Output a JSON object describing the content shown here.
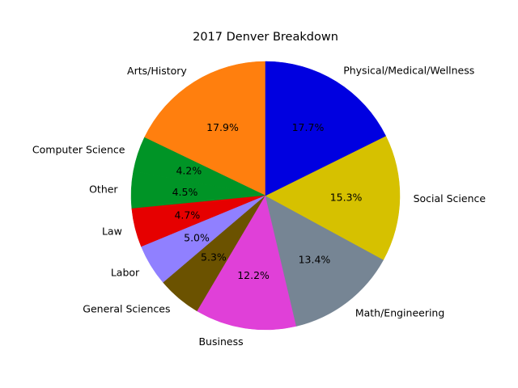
{
  "chart_data": {
    "type": "pie",
    "title": "2017 Denver Breakdown",
    "start_angle_deg": 90,
    "direction": "counterclockwise",
    "slices": [
      {
        "label": "Arts/History",
        "value": 17.9,
        "pct_text": "17.9%",
        "color": "#ff7f0e"
      },
      {
        "label": "Computer Science",
        "value": 4.2,
        "pct_text": "4.2%",
        "color": "#009426"
      },
      {
        "label": "Other",
        "value": 4.5,
        "pct_text": "4.5%",
        "color": "#009426"
      },
      {
        "label": "Law",
        "value": 4.7,
        "pct_text": "4.7%",
        "color": "#e60000"
      },
      {
        "label": "Labor",
        "value": 5.0,
        "pct_text": "5.0%",
        "color": "#9080ff"
      },
      {
        "label": "General Sciences",
        "value": 5.3,
        "pct_text": "5.3%",
        "color": "#6b5200"
      },
      {
        "label": "Business",
        "value": 12.2,
        "pct_text": "12.2%",
        "color": "#e040d8"
      },
      {
        "label": "Math/Engineering",
        "value": 13.4,
        "pct_text": "13.4%",
        "color": "#768594"
      },
      {
        "label": "Social Science",
        "value": 15.3,
        "pct_text": "15.3%",
        "color": "#d6c100"
      },
      {
        "label": "Physical/Medical/Wellness",
        "value": 17.7,
        "pct_text": "17.7%",
        "color": "#0000e0"
      }
    ]
  }
}
